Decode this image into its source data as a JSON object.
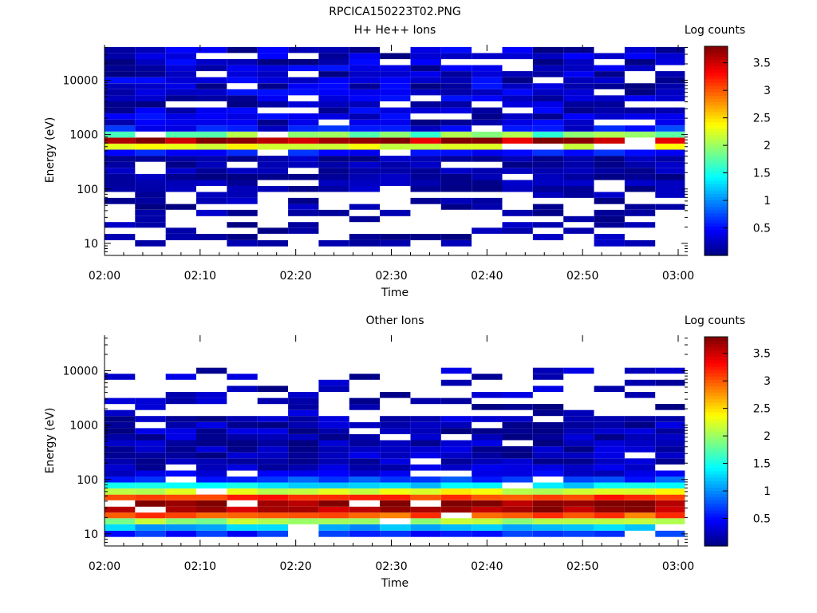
{
  "figure_title": "RPCICA150223T02.PNG",
  "chart_data": [
    {
      "type": "heatmap",
      "title": "H+ He++ Ions",
      "xlabel": "Time",
      "ylabel": "Energy (eV)",
      "y_scale": "log",
      "ylim": [
        6,
        45000
      ],
      "xlim_minutes": [
        0,
        61
      ],
      "x_ticks": [
        "02:00",
        "02:10",
        "02:20",
        "02:30",
        "02:40",
        "02:50",
        "03:00"
      ],
      "y_ticks": [
        "10",
        "100",
        "1000",
        "10000"
      ],
      "colorbar": {
        "label": "Log counts",
        "range": [
          0,
          3.8
        ],
        "ticks": [
          "0.5",
          "1",
          "1.5",
          "2",
          "2.5",
          "3",
          "3.5"
        ]
      },
      "bin_times_minutes": [
        0,
        3.2,
        6.4,
        9.6,
        12.8,
        16,
        19.2,
        22.4,
        25.6,
        28.8,
        32,
        35.2,
        38.4,
        41.6,
        44.8,
        48,
        51.2,
        54.4,
        57.6
      ],
      "energy_bins_eV": [
        10,
        13,
        17,
        22,
        28,
        36,
        47,
        60,
        78,
        100,
        129,
        166,
        215,
        278,
        359,
        464,
        600,
        775,
        1000,
        1290,
        1670,
        2150,
        2780,
        3590,
        4640,
        6000,
        7750,
        10000,
        12900,
        16700,
        21500,
        27800,
        35900
      ],
      "peak_energy_eV": 750,
      "peak_log_counts": 3.4
    },
    {
      "type": "heatmap",
      "title": "Other Ions",
      "xlabel": "Time",
      "ylabel": "Energy (eV)",
      "y_scale": "log",
      "ylim": [
        6,
        45000
      ],
      "xlim_minutes": [
        0,
        61
      ],
      "x_ticks": [
        "02:00",
        "02:10",
        "02:20",
        "02:30",
        "02:40",
        "02:50",
        "03:00"
      ],
      "y_ticks": [
        "10",
        "100",
        "1000",
        "10000"
      ],
      "colorbar": {
        "label": "Log counts",
        "range": [
          0,
          3.8
        ],
        "ticks": [
          "0.5",
          "1",
          "1.5",
          "2",
          "2.5",
          "3",
          "3.5"
        ]
      },
      "bin_times_minutes": [
        0,
        3.2,
        6.4,
        9.6,
        12.8,
        16,
        19.2,
        22.4,
        25.6,
        28.8,
        32,
        35.2,
        38.4,
        41.6,
        44.8,
        48,
        51.2,
        54.4,
        57.6
      ],
      "energy_bins_eV": [
        10,
        13,
        17,
        22,
        28,
        36,
        47,
        60,
        78,
        100,
        129,
        166,
        215,
        278,
        359,
        464,
        600,
        775,
        1000,
        1290,
        1670,
        2150,
        2780,
        3590,
        4640,
        6000,
        7750,
        10000,
        12900,
        16700,
        21500,
        27800,
        35900
      ],
      "peak_energy_eV": 33,
      "peak_log_counts": 3.6
    }
  ]
}
